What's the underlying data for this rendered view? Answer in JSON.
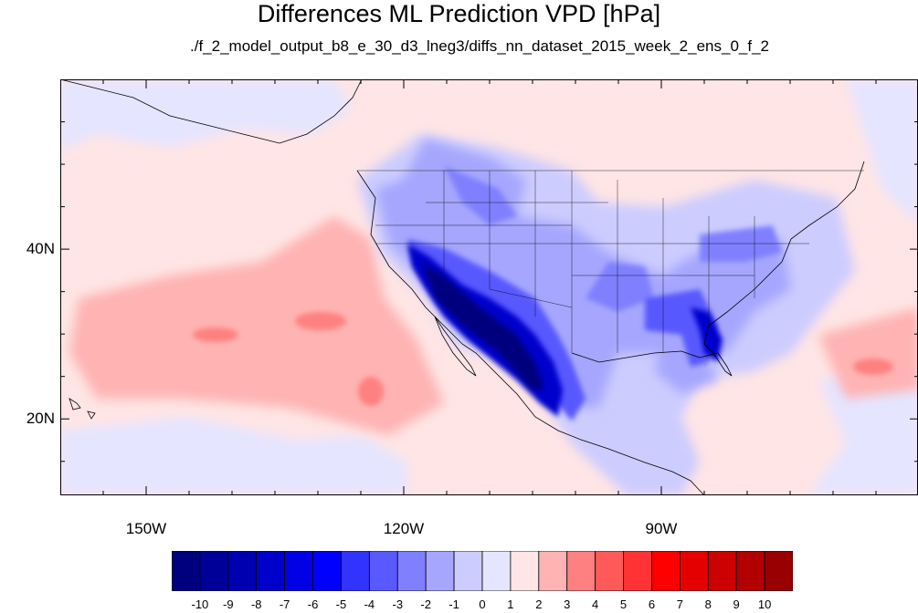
{
  "title": "Differences ML Prediction VPD [hPa]",
  "subtitle": "./f_2_model_output_b8_e_30_d3_lneg3/diffs_nn_dataset_2015_week_2_ens_0_f_2",
  "map": {
    "lon_range": [
      -160,
      -60
    ],
    "lat_range": [
      11,
      60
    ],
    "lat_ticks": [
      {
        "value": 40,
        "label": "40N"
      },
      {
        "value": 20,
        "label": "20N"
      }
    ],
    "lon_ticks": [
      {
        "value": -150,
        "label": "150W"
      },
      {
        "value": -120,
        "label": "120W"
      },
      {
        "value": -90,
        "label": "90W"
      }
    ],
    "ocean_tone": "slight positive (light pink)",
    "land_tone": "negative (blue), strongest over Mexico, US Southwest and Southeast"
  },
  "colorbar": {
    "labels": [
      "-10",
      "-9",
      "-8",
      "-7",
      "-6",
      "-5",
      "-4",
      "-3",
      "-2",
      "-1",
      "0",
      "1",
      "2",
      "3",
      "4",
      "5",
      "6",
      "7",
      "8",
      "9",
      "10"
    ],
    "colors": [
      "#00007f",
      "#000099",
      "#0000b2",
      "#0000cc",
      "#0000e5",
      "#0000ff",
      "#3333ff",
      "#5959ff",
      "#8080ff",
      "#a6a6ff",
      "#ccccff",
      "#e5e5ff",
      "#ffe5e5",
      "#ffb3b3",
      "#ff8080",
      "#ff5959",
      "#ff3333",
      "#ff0000",
      "#e50000",
      "#cc0000",
      "#b20000",
      "#990000"
    ]
  }
}
